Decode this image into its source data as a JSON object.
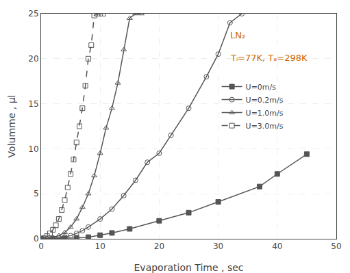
{
  "chart_data": {
    "type": "line",
    "xlabel": "Evaporation Time , sec",
    "ylabel": "Volumme , µl",
    "xlim": [
      0,
      50
    ],
    "ylim": [
      0,
      25
    ],
    "xticks": [
      0,
      10,
      20,
      30,
      40,
      50
    ],
    "yticks": [
      0,
      5,
      10,
      15,
      20,
      25
    ],
    "grid": true,
    "legend": "upper right",
    "annotations": [
      {
        "text": "LN₂",
        "color": "#cc6600"
      },
      {
        "text": "Tₗ=77K, Tₐ=298K",
        "color": "#cc6600"
      }
    ],
    "series": [
      {
        "name": "U=0m/s",
        "color": "#555555",
        "marker": "square",
        "line_style": "solid",
        "x": [
          0,
          2,
          4,
          6,
          8,
          10,
          12,
          15,
          20,
          25,
          30,
          37,
          40,
          45
        ],
        "values": [
          0,
          0.02,
          0.05,
          0.1,
          0.18,
          0.4,
          0.65,
          1.1,
          2.0,
          2.9,
          4.1,
          5.8,
          7.2,
          9.4
        ]
      },
      {
        "name": "U=0.2m/s",
        "color": "#555555",
        "marker": "circle-open",
        "line_style": "solid",
        "x": [
          0,
          1,
          2,
          3,
          4,
          5,
          6,
          7,
          8,
          10,
          12,
          14,
          16,
          18,
          20,
          22,
          25,
          28,
          30,
          32,
          34
        ],
        "values": [
          0,
          0.02,
          0.05,
          0.1,
          0.2,
          0.35,
          0.6,
          0.9,
          1.3,
          2.2,
          3.3,
          4.8,
          6.5,
          8.5,
          9.5,
          11.5,
          14.5,
          18.0,
          20.5,
          24.0,
          25.0
        ]
      },
      {
        "name": "U=1.0m/s",
        "color": "#555555",
        "marker": "triangle-up-open",
        "line_style": "solid",
        "x": [
          0,
          1,
          2,
          3,
          4,
          5,
          6,
          7,
          8,
          9,
          10,
          11,
          12,
          13,
          14,
          15,
          16,
          17
        ],
        "values": [
          0,
          0.05,
          0.15,
          0.35,
          0.7,
          1.3,
          2.2,
          3.5,
          5.0,
          7.0,
          9.5,
          12.3,
          14.5,
          17.3,
          21.0,
          24.5,
          25.0,
          25.0
        ]
      },
      {
        "name": "U=3.0m/s",
        "color": "#555555",
        "marker": "square-open",
        "line_style": "dash",
        "x": [
          0,
          0.5,
          1,
          1.5,
          2,
          2.5,
          3,
          3.5,
          4,
          4.5,
          5,
          5.5,
          6,
          6.5,
          7,
          7.5,
          8,
          8.5,
          9,
          9.5,
          10,
          10.5
        ],
        "values": [
          0,
          0.1,
          0.3,
          0.6,
          1.0,
          1.5,
          2.2,
          3.2,
          4.3,
          5.7,
          7.2,
          8.8,
          10.7,
          12.5,
          14.5,
          17.0,
          20.0,
          21.5,
          24.8,
          25.0,
          25.0,
          25.0
        ]
      }
    ]
  }
}
